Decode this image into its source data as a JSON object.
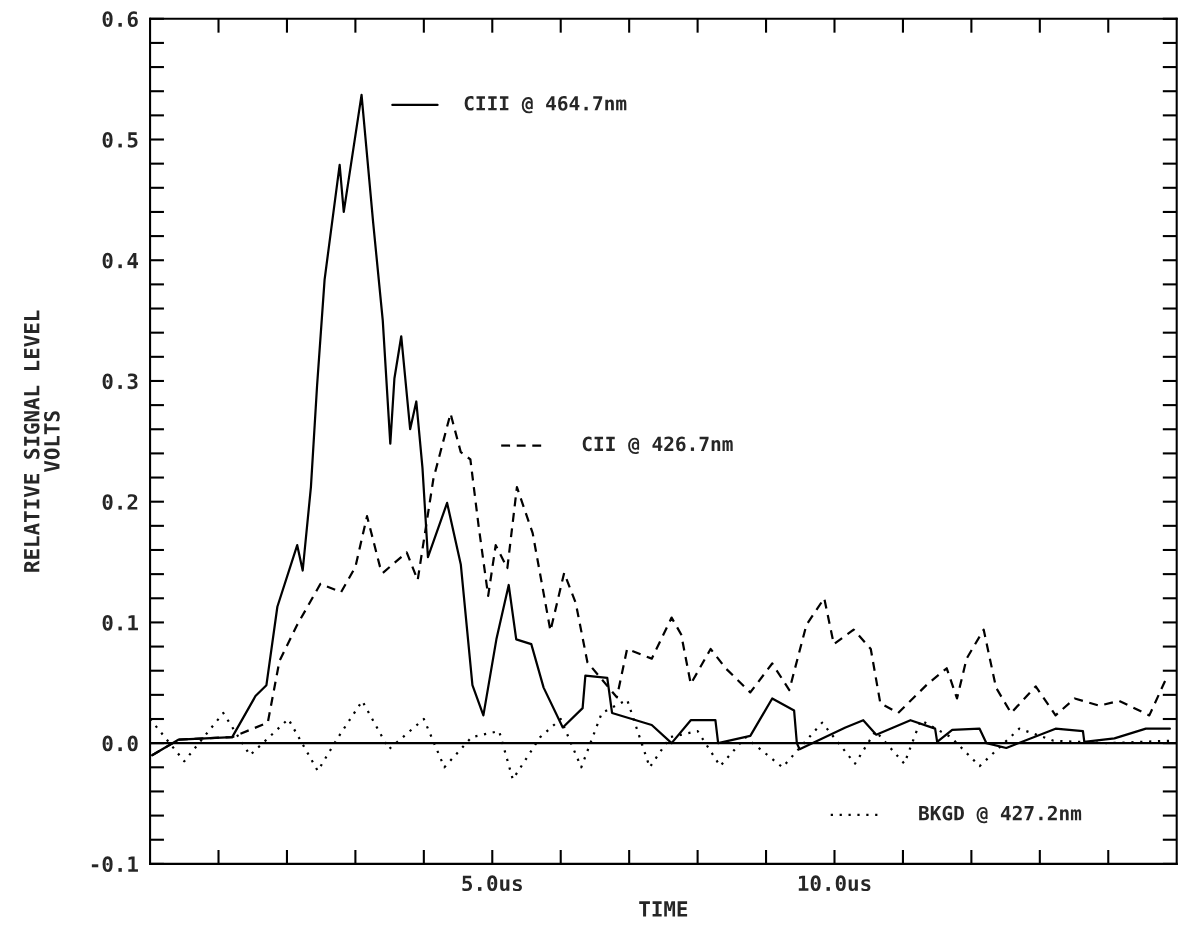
{
  "chart_data": {
    "type": "line",
    "xlabel": "TIME",
    "ylabel": "RELATIVE SIGNAL LEVEL\nVOLTS",
    "xlim": [
      0,
      15
    ],
    "ylim": [
      -0.1,
      0.6
    ],
    "xticks": [
      {
        "value": 1,
        "label": null
      },
      {
        "value": 2,
        "label": null
      },
      {
        "value": 3,
        "label": null
      },
      {
        "value": 4,
        "label": null
      },
      {
        "value": 5,
        "label": "5.0us"
      },
      {
        "value": 6,
        "label": null
      },
      {
        "value": 7,
        "label": null
      },
      {
        "value": 8,
        "label": null
      },
      {
        "value": 9,
        "label": null
      },
      {
        "value": 10,
        "label": "10.0us"
      },
      {
        "value": 11,
        "label": null
      },
      {
        "value": 12,
        "label": null
      },
      {
        "value": 13,
        "label": null
      },
      {
        "value": 14,
        "label": null
      }
    ],
    "yticks": [
      {
        "value": -0.1,
        "label": "-0.1"
      },
      {
        "value": -0.08,
        "label": null
      },
      {
        "value": -0.06,
        "label": null
      },
      {
        "value": -0.04,
        "label": null
      },
      {
        "value": -0.02,
        "label": null
      },
      {
        "value": 0.0,
        "label": "0.0"
      },
      {
        "value": 0.02,
        "label": null
      },
      {
        "value": 0.04,
        "label": null
      },
      {
        "value": 0.06,
        "label": null
      },
      {
        "value": 0.08,
        "label": null
      },
      {
        "value": 0.1,
        "label": "0.1"
      },
      {
        "value": 0.12,
        "label": null
      },
      {
        "value": 0.14,
        "label": null
      },
      {
        "value": 0.16,
        "label": null
      },
      {
        "value": 0.18,
        "label": null
      },
      {
        "value": 0.2,
        "label": "0.2"
      },
      {
        "value": 0.22,
        "label": null
      },
      {
        "value": 0.24,
        "label": null
      },
      {
        "value": 0.26,
        "label": null
      },
      {
        "value": 0.28,
        "label": null
      },
      {
        "value": 0.3,
        "label": "0.3"
      },
      {
        "value": 0.32,
        "label": null
      },
      {
        "value": 0.34,
        "label": null
      },
      {
        "value": 0.36,
        "label": null
      },
      {
        "value": 0.38,
        "label": null
      },
      {
        "value": 0.4,
        "label": "0.4"
      },
      {
        "value": 0.42,
        "label": null
      },
      {
        "value": 0.44,
        "label": null
      },
      {
        "value": 0.46,
        "label": null
      },
      {
        "value": 0.48,
        "label": null
      },
      {
        "value": 0.5,
        "label": "0.5"
      },
      {
        "value": 0.52,
        "label": null
      },
      {
        "value": 0.54,
        "label": null
      },
      {
        "value": 0.56,
        "label": null
      },
      {
        "value": 0.58,
        "label": null
      },
      {
        "value": 0.6,
        "label": "0.6"
      }
    ],
    "ref_lines": [
      {
        "axis": "y",
        "value": 0,
        "color": "#000000",
        "line_style": "solid"
      }
    ],
    "grid": false,
    "legend": "right",
    "series": [
      {
        "name": "CIII @ 464.7nm",
        "color": "#000000",
        "line_style": "solid",
        "x": [
          0.03,
          0.42,
          1.2,
          1.54,
          1.7,
          1.86,
          2.15,
          2.23,
          2.35,
          2.44,
          2.55,
          2.77,
          2.83,
          3.09,
          3.26,
          3.4,
          3.51,
          3.57,
          3.67,
          3.8,
          3.89,
          3.98,
          4.06,
          4.34,
          4.54,
          4.71,
          4.87,
          5.06,
          5.24,
          5.35,
          5.57,
          5.75,
          6.03,
          6.32,
          6.36,
          6.68,
          6.75,
          7.33,
          7.62,
          7.9,
          8.26,
          8.3,
          8.77,
          9.09,
          9.41,
          9.45,
          9.49,
          10.16,
          10.42,
          10.61,
          11.11,
          11.47,
          11.5,
          11.72,
          12.12,
          12.22,
          12.51,
          13.23,
          13.63,
          13.65,
          14.09,
          14.55,
          14.9
        ],
        "values": [
          -0.01,
          0.003,
          0.005,
          0.039,
          0.048,
          0.113,
          0.164,
          0.143,
          0.212,
          0.296,
          0.384,
          0.479,
          0.44,
          0.537,
          0.431,
          0.35,
          0.248,
          0.302,
          0.337,
          0.26,
          0.283,
          0.228,
          0.154,
          0.199,
          0.148,
          0.048,
          0.023,
          0.086,
          0.131,
          0.086,
          0.082,
          0.046,
          0.013,
          0.029,
          0.056,
          0.054,
          0.025,
          0.015,
          0.0,
          0.019,
          0.019,
          0.0,
          0.006,
          0.037,
          0.027,
          0.0,
          -0.005,
          0.013,
          0.019,
          0.007,
          0.019,
          0.012,
          0.001,
          0.011,
          0.012,
          0.0,
          -0.004,
          0.012,
          0.01,
          0.001,
          0.004,
          0.012,
          0.012
        ]
      },
      {
        "name": "CII @ 426.7nm",
        "color": "#000000",
        "line_style": "dashed",
        "x": [
          0.03,
          0.42,
          1.2,
          1.72,
          1.89,
          2.15,
          2.49,
          2.79,
          3.0,
          3.17,
          3.36,
          3.4,
          3.75,
          3.91,
          4.14,
          4.39,
          4.54,
          4.68,
          4.8,
          4.94,
          5.05,
          5.22,
          5.36,
          5.59,
          5.85,
          6.05,
          6.22,
          6.39,
          6.82,
          6.97,
          7.33,
          7.62,
          7.76,
          7.9,
          8.19,
          8.41,
          8.77,
          9.09,
          9.34,
          9.59,
          9.85,
          9.99,
          10.28,
          10.53,
          10.67,
          10.93,
          11.36,
          11.64,
          11.79,
          11.93,
          12.18,
          12.36,
          12.58,
          12.94,
          13.23,
          13.51,
          13.87,
          14.16,
          14.6,
          14.85
        ],
        "values": [
          -0.01,
          0.003,
          0.005,
          0.017,
          0.068,
          0.098,
          0.132,
          0.125,
          0.146,
          0.188,
          0.146,
          0.141,
          0.158,
          0.135,
          0.219,
          0.273,
          0.241,
          0.235,
          0.18,
          0.122,
          0.164,
          0.145,
          0.212,
          0.174,
          0.093,
          0.141,
          0.116,
          0.067,
          0.038,
          0.078,
          0.07,
          0.104,
          0.09,
          0.049,
          0.078,
          0.062,
          0.042,
          0.066,
          0.044,
          0.098,
          0.12,
          0.082,
          0.094,
          0.078,
          0.033,
          0.025,
          0.049,
          0.062,
          0.037,
          0.07,
          0.094,
          0.046,
          0.025,
          0.047,
          0.023,
          0.037,
          0.031,
          0.035,
          0.023,
          0.054
        ]
      },
      {
        "name": "BKGD @ 427.2nm",
        "color": "#000000",
        "line_style": "dotted",
        "x": [
          0.0,
          0.5,
          1.07,
          1.46,
          2.02,
          2.45,
          2.75,
          3.1,
          3.49,
          4.0,
          4.3,
          4.7,
          5.1,
          5.3,
          5.7,
          6.0,
          6.3,
          6.6,
          6.97,
          7.3,
          7.6,
          8.0,
          8.33,
          8.7,
          9.24,
          9.82,
          10.3,
          10.6,
          11.02,
          11.26,
          11.7,
          12.12,
          12.7,
          13.2,
          14.0,
          14.9
        ],
        "values": [
          0.02,
          -0.015,
          0.025,
          -0.01,
          0.02,
          -0.023,
          0.005,
          0.035,
          -0.005,
          0.02,
          -0.02,
          0.005,
          0.01,
          -0.03,
          0.005,
          0.02,
          -0.02,
          0.025,
          0.036,
          -0.02,
          0.005,
          0.01,
          -0.019,
          0.005,
          -0.02,
          0.017,
          -0.017,
          0.01,
          -0.017,
          0.019,
          0.005,
          -0.019,
          0.012,
          0.002,
          0.0,
          0.002
        ]
      }
    ]
  }
}
